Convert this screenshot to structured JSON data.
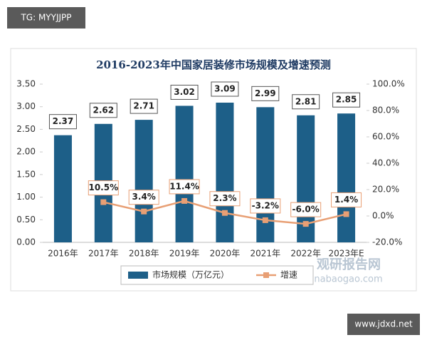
{
  "header": {
    "tag": "TG: MYYJJPP"
  },
  "footer": {
    "site": "www.jdxd.net"
  },
  "watermark": {
    "name": "观研报告网",
    "url": "chinabaogao.com"
  },
  "chart_data": {
    "type": "bar",
    "title": "2016-2023年中国家居装修市场规模及增速预测",
    "categories": [
      "2016年",
      "2017年",
      "2018年",
      "2019年",
      "2020年",
      "2021年",
      "2022年",
      "2023年E"
    ],
    "series": [
      {
        "name": "市场规模（万亿元）",
        "type": "bar",
        "color": "#1d5f88",
        "values": [
          2.37,
          2.62,
          2.71,
          3.02,
          3.09,
          2.99,
          2.81,
          2.85
        ]
      },
      {
        "name": "增速",
        "type": "line",
        "axis": "y2",
        "color": "#e89f74",
        "values": [
          null,
          10.5,
          3.4,
          11.4,
          2.3,
          -3.2,
          -6.0,
          1.4
        ],
        "value_labels": [
          null,
          "10.5%",
          "3.4%",
          "11.4%",
          "2.3%",
          "-3.2%",
          "-6.0%",
          "1.4%"
        ]
      }
    ],
    "ylim": [
      0,
      3.5
    ],
    "yticks": [
      {
        "value": 0,
        "label": "0.00"
      },
      {
        "value": 0.5,
        "label": "0.50"
      },
      {
        "value": 1,
        "label": "1.00"
      },
      {
        "value": 1.5,
        "label": "1.50"
      },
      {
        "value": 2,
        "label": "2.00"
      },
      {
        "value": 2.5,
        "label": "2.50"
      },
      {
        "value": 3,
        "label": "3.00"
      },
      {
        "value": 3.5,
        "label": "3.50"
      }
    ],
    "y2lim": [
      -20,
      100
    ],
    "y2ticks": [
      {
        "value": -20,
        "label": "-20.0%"
      },
      {
        "value": 0,
        "label": "0.0%"
      },
      {
        "value": 20,
        "label": "20.0%"
      },
      {
        "value": 40,
        "label": "40.0%"
      },
      {
        "value": 60,
        "label": "60.0%"
      },
      {
        "value": 80,
        "label": "80.0%"
      },
      {
        "value": 100,
        "label": "100.0%"
      }
    ],
    "legend": "bottom"
  }
}
